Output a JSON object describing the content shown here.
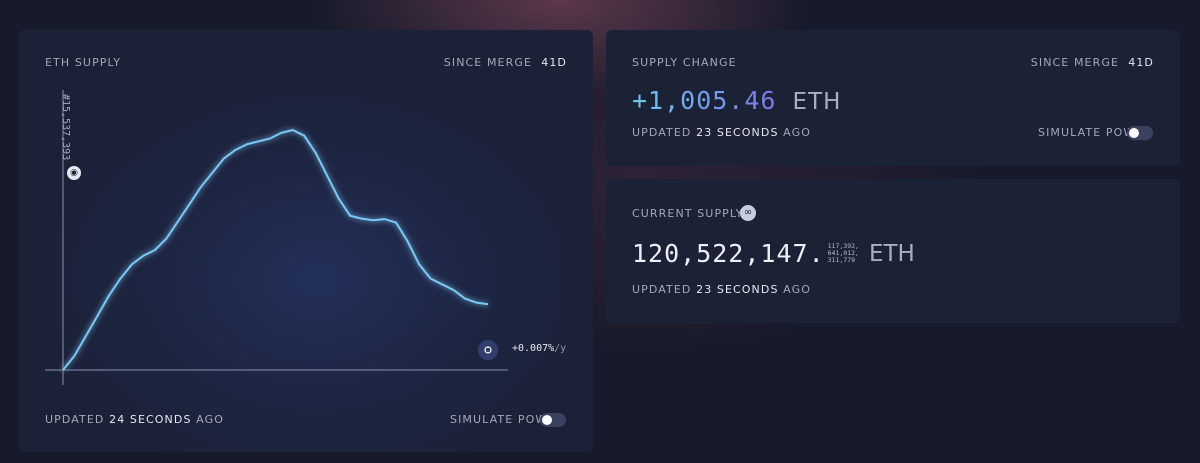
{
  "eth_supply": {
    "title": "ETH SUPPLY",
    "since_label": "SINCE MERGE",
    "since_value": "41d",
    "block_label": "#15,537,393",
    "rate": "+0.007%",
    "rate_unit": "/y",
    "updated_prefix": "UPDATED",
    "updated_value": "24 SECONDS",
    "updated_suffix": "AGO",
    "simulate_label": "SIMULATE PoW",
    "simulate_on": false
  },
  "supply_change": {
    "title": "SUPPLY CHANGE",
    "since_label": "SINCE MERGE",
    "since_value": "41d",
    "value": "+1,005.46",
    "unit": "ETH",
    "updated_prefix": "UPDATED",
    "updated_value": "23 SECONDS",
    "updated_suffix": "AGO",
    "simulate_label": "SIMULATE PoW",
    "simulate_on": false
  },
  "current_supply": {
    "title": "CURRENT SUPPLY",
    "icon": "glasses-emoji-icon",
    "value_main": "120,522,147.",
    "decimals": [
      "117,392,",
      "641,012,",
      "311,779"
    ],
    "unit": "ETH",
    "updated_prefix": "UPDATED",
    "updated_value": "23 SECONDS",
    "updated_suffix": "AGO"
  },
  "colors": {
    "accent_line": "#7cc8f5",
    "accent_purple": "#7b78e8",
    "card_bg": "#1c2235"
  },
  "chart_data": {
    "type": "line",
    "series": [
      {
        "values": [
          0,
          25,
          60,
          95,
          130,
          160,
          185,
          200,
          210,
          230,
          260,
          290,
          320,
          345,
          370,
          385,
          395,
          400,
          405,
          415,
          420,
          410,
          380,
          340,
          300,
          270,
          265,
          262,
          264,
          258,
          225,
          185,
          160,
          150,
          140,
          125,
          118,
          115
        ]
      }
    ],
    "baseline": 0,
    "ylim": [
      -20,
      440
    ]
  }
}
